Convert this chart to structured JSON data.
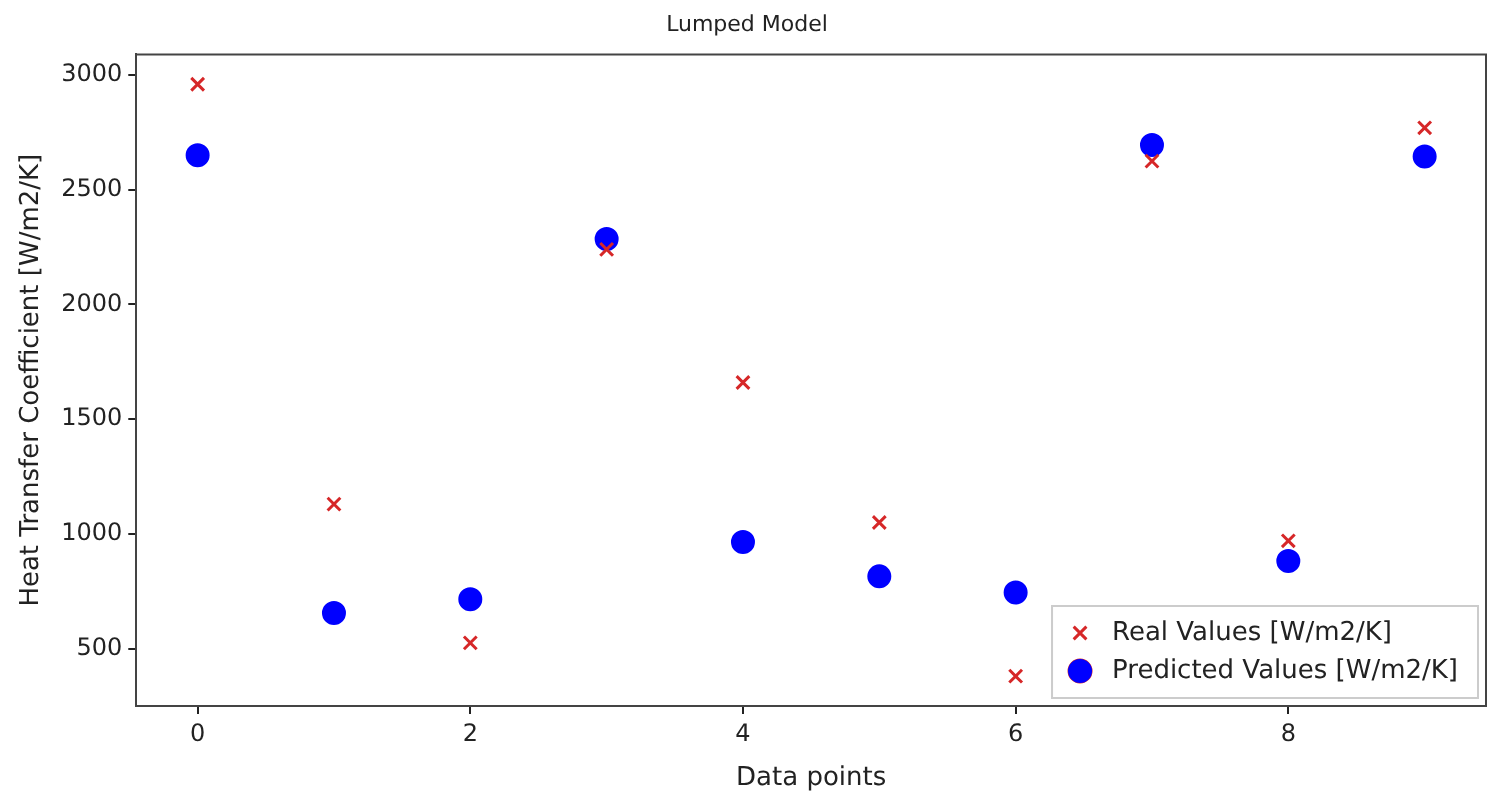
{
  "chart_data": {
    "type": "scatter",
    "title": "Lumped Model",
    "xlabel": "Data points",
    "ylabel": "Heat Transfer Coefficient [W/m2/K]",
    "x": [
      0,
      1,
      2,
      3,
      4,
      5,
      6,
      7,
      8,
      9
    ],
    "series": [
      {
        "name": "Real Values [W/m2/K]",
        "color": "#d62728",
        "marker": "cross",
        "values": [
          2960,
          1130,
          525,
          2240,
          1660,
          1050,
          380,
          2625,
          970,
          2770
        ]
      },
      {
        "name": "Predicted Values [W/m2/K]",
        "color": "#0000ff",
        "marker": "circle",
        "values": [
          2650,
          655,
          715,
          2285,
          965,
          815,
          745,
          2695,
          882,
          2645
        ]
      }
    ],
    "xlim": [
      -0.45,
      9.45
    ],
    "ylim": [
      250,
      3090
    ],
    "xticks": [
      0,
      2,
      4,
      6,
      8
    ],
    "yticks": [
      500,
      1000,
      1500,
      2000,
      2500,
      3000
    ],
    "grid": false,
    "legend": "bottom right"
  }
}
